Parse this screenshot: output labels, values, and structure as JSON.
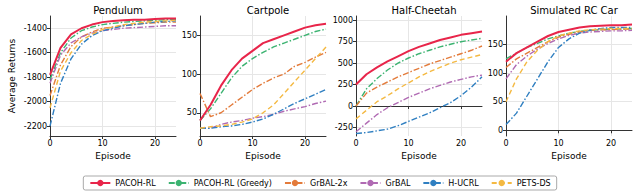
{
  "chart_data": [
    {
      "type": "line",
      "title": "Pendulum",
      "x_label": "Episode",
      "y_label": "Average Returns",
      "x": [
        0,
        2,
        4,
        6,
        8,
        10,
        12,
        14,
        16,
        18,
        20,
        22,
        24
      ],
      "xlim": [
        0,
        24
      ],
      "xticks": [
        0,
        10,
        20
      ],
      "ylim": [
        -2280,
        -1300
      ],
      "yticks": [
        -2200,
        -2000,
        -1800,
        -1600,
        -1400
      ],
      "grid": true,
      "series": [
        {
          "name": "PACOH-RL",
          "color": "#e8254a",
          "line_style": "solid",
          "values": [
            -1780,
            -1560,
            -1450,
            -1400,
            -1370,
            -1350,
            -1340,
            -1335,
            -1330,
            -1330,
            -1325,
            -1320,
            -1320
          ]
        },
        {
          "name": "PACOH-RL (Greedy)",
          "color": "#3cb371",
          "line_style": "dashdot",
          "values": [
            -1820,
            -1600,
            -1480,
            -1420,
            -1390,
            -1370,
            -1360,
            -1350,
            -1345,
            -1340,
            -1335,
            -1330,
            -1330
          ]
        },
        {
          "name": "GrBAL-2x",
          "color": "#e37b3b",
          "line_style": "dashdot",
          "values": [
            -1950,
            -1700,
            -1550,
            -1470,
            -1430,
            -1400,
            -1390,
            -1380,
            -1370,
            -1360,
            -1355,
            -1350,
            -1350
          ]
        },
        {
          "name": "GrBAL",
          "color": "#b06ab3",
          "line_style": "dashdot",
          "values": [
            -1850,
            -1620,
            -1520,
            -1470,
            -1440,
            -1420,
            -1410,
            -1400,
            -1395,
            -1390,
            -1385,
            -1380,
            -1380
          ]
        },
        {
          "name": "H-UCRL",
          "color": "#2f7fc1",
          "line_style": "dashdot",
          "values": [
            -2200,
            -1850,
            -1650,
            -1530,
            -1460,
            -1420,
            -1400,
            -1380,
            -1370,
            -1360,
            -1350,
            -1345,
            -1340
          ]
        },
        {
          "name": "PETS-DS",
          "color": "#f4b942",
          "line_style": "dashed",
          "values": [
            -2050,
            -1750,
            -1600,
            -1500,
            -1450,
            -1410,
            -1390,
            -1370,
            -1360,
            -1350,
            -1345,
            -1340,
            -1335
          ]
        }
      ]
    },
    {
      "type": "line",
      "title": "Cartpole",
      "x_label": "Episode",
      "x": [
        0,
        2,
        4,
        6,
        8,
        10,
        12,
        14,
        16,
        18,
        20,
        22,
        24
      ],
      "xlim": [
        0,
        24
      ],
      "xticks": [
        0,
        10,
        20
      ],
      "ylim": [
        20,
        175
      ],
      "yticks": [
        50,
        100,
        150
      ],
      "grid": true,
      "series": [
        {
          "name": "PACOH-RL",
          "color": "#e8254a",
          "line_style": "solid",
          "values": [
            40,
            60,
            85,
            105,
            120,
            130,
            140,
            145,
            150,
            155,
            160,
            163,
            165
          ]
        },
        {
          "name": "PACOH-RL (Greedy)",
          "color": "#3cb371",
          "line_style": "dashdot",
          "values": [
            40,
            55,
            75,
            95,
            110,
            120,
            128,
            135,
            140,
            145,
            150,
            155,
            158
          ]
        },
        {
          "name": "GrBAL-2x",
          "color": "#e37b3b",
          "line_style": "dashdot",
          "values": [
            75,
            45,
            50,
            60,
            70,
            80,
            88,
            95,
            100,
            110,
            115,
            122,
            128
          ]
        },
        {
          "name": "GrBAL",
          "color": "#b06ab3",
          "line_style": "dashdot",
          "values": [
            30,
            30,
            35,
            38,
            40,
            43,
            45,
            48,
            52,
            55,
            58,
            62,
            65
          ]
        },
        {
          "name": "H-UCRL",
          "color": "#2f7fc1",
          "line_style": "dashdot",
          "values": [
            30,
            30,
            32,
            33,
            35,
            38,
            42,
            48,
            55,
            62,
            68,
            74,
            80
          ]
        },
        {
          "name": "PETS-DS",
          "color": "#f4b942",
          "line_style": "dashed",
          "values": [
            30,
            32,
            33,
            35,
            38,
            42,
            50,
            60,
            75,
            90,
            105,
            120,
            135
          ]
        }
      ]
    },
    {
      "type": "line",
      "title": "Half-Cheetah",
      "x_label": "Episode",
      "x": [
        0,
        2,
        4,
        6,
        8,
        10,
        12,
        14,
        16,
        18,
        20,
        22,
        24
      ],
      "xlim": [
        0,
        24
      ],
      "xticks": [
        0,
        10,
        20
      ],
      "ylim": [
        -350,
        1050
      ],
      "yticks": [
        -250,
        0,
        250,
        500,
        750,
        1000
      ],
      "grid": true,
      "series": [
        {
          "name": "PACOH-RL",
          "color": "#e8254a",
          "line_style": "solid",
          "values": [
            250,
            370,
            450,
            520,
            580,
            640,
            690,
            730,
            770,
            800,
            830,
            850,
            870
          ]
        },
        {
          "name": "PACOH-RL (Greedy)",
          "color": "#3cb371",
          "line_style": "dashdot",
          "values": [
            0,
            200,
            320,
            420,
            500,
            560,
            610,
            650,
            690,
            720,
            750,
            770,
            790
          ]
        },
        {
          "name": "GrBAL-2x",
          "color": "#e37b3b",
          "line_style": "dashdot",
          "values": [
            0,
            150,
            220,
            280,
            340,
            390,
            440,
            490,
            530,
            570,
            610,
            650,
            700
          ]
        },
        {
          "name": "GrBAL",
          "color": "#b06ab3",
          "line_style": "dashdot",
          "values": [
            -300,
            -200,
            -100,
            -20,
            40,
            100,
            150,
            200,
            240,
            280,
            310,
            340,
            360
          ]
        },
        {
          "name": "H-UCRL",
          "color": "#2f7fc1",
          "line_style": "dashdot",
          "values": [
            -320,
            -310,
            -290,
            -270,
            -230,
            -180,
            -130,
            -80,
            -20,
            40,
            120,
            220,
            340
          ]
        },
        {
          "name": "PETS-DS",
          "color": "#f4b942",
          "line_style": "dashed",
          "values": [
            -150,
            -50,
            50,
            120,
            200,
            270,
            340,
            400,
            450,
            500,
            540,
            570,
            600
          ]
        }
      ]
    },
    {
      "type": "line",
      "title": "Simulated RC Car",
      "x_label": "Episode",
      "x": [
        0,
        2,
        4,
        6,
        8,
        10,
        12,
        14,
        16,
        18,
        20,
        22,
        24
      ],
      "xlim": [
        0,
        24
      ],
      "xticks": [
        0,
        10,
        20
      ],
      "ylim": [
        -10,
        200
      ],
      "yticks": [
        0,
        50,
        100,
        150
      ],
      "grid": true,
      "series": [
        {
          "name": "PACOH-RL",
          "color": "#e8254a",
          "line_style": "solid",
          "values": [
            120,
            135,
            145,
            155,
            165,
            172,
            176,
            180,
            182,
            183,
            184,
            184,
            185
          ]
        },
        {
          "name": "PACOH-RL (Greedy)",
          "color": "#3cb371",
          "line_style": "dashdot",
          "values": [
            125,
            135,
            145,
            152,
            160,
            165,
            170,
            173,
            175,
            176,
            177,
            177,
            178
          ]
        },
        {
          "name": "GrBAL-2x",
          "color": "#e37b3b",
          "line_style": "dashdot",
          "values": [
            110,
            125,
            135,
            145,
            155,
            163,
            168,
            172,
            175,
            176,
            176,
            177,
            177
          ]
        },
        {
          "name": "GrBAL",
          "color": "#b06ab3",
          "line_style": "dashdot",
          "values": [
            90,
            115,
            130,
            142,
            152,
            160,
            166,
            170,
            172,
            173,
            174,
            174,
            175
          ]
        },
        {
          "name": "H-UCRL",
          "color": "#2f7fc1",
          "line_style": "dashdot",
          "values": [
            10,
            30,
            60,
            90,
            120,
            145,
            160,
            170,
            175,
            178,
            180,
            180,
            180
          ]
        },
        {
          "name": "PETS-DS",
          "color": "#f4b942",
          "line_style": "dashed",
          "values": [
            50,
            90,
            120,
            140,
            155,
            165,
            170,
            174,
            176,
            177,
            178,
            178,
            178
          ]
        }
      ]
    }
  ]
}
